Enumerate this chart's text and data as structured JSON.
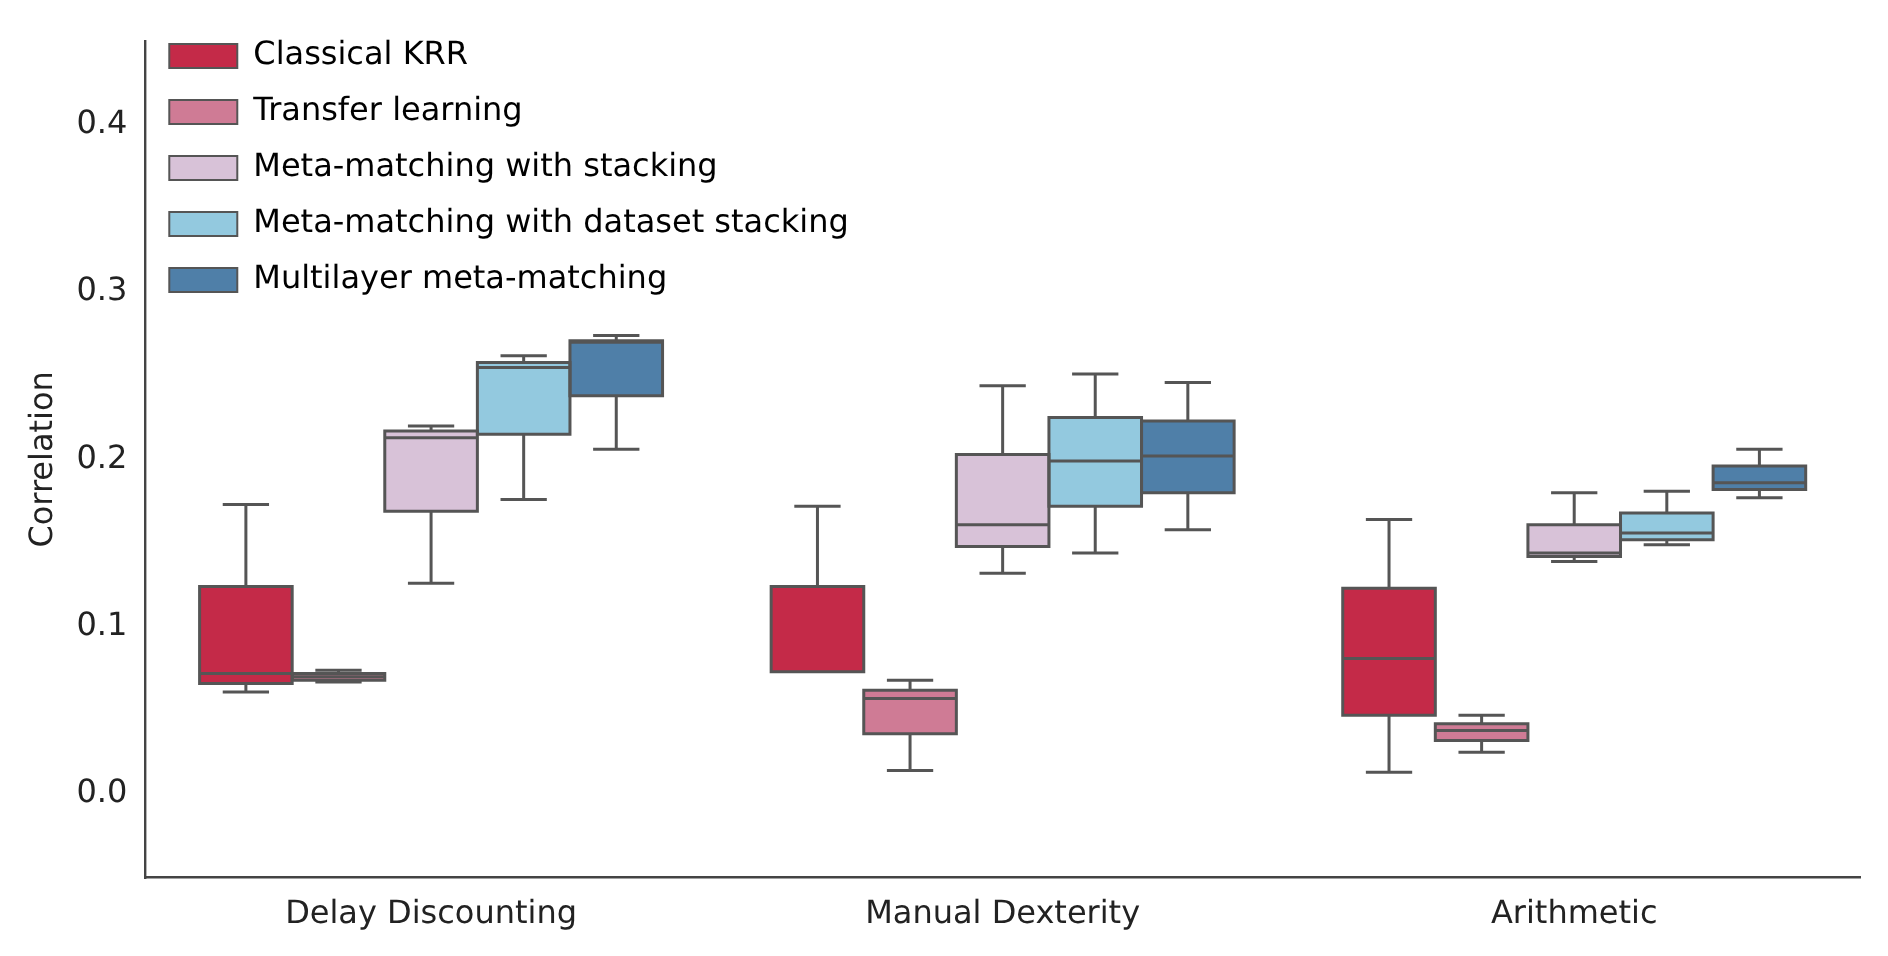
{
  "chart_data": {
    "type": "box",
    "ylabel": "Correlation",
    "categories": [
      "Delay Discounting",
      "Manual Dexterity",
      "Arithmetic"
    ],
    "ylim": [
      -0.05,
      0.45
    ],
    "yticks": [
      {
        "value": 0,
        "label": "0.0"
      },
      0.1,
      0.2,
      0.3,
      0.4
    ],
    "grid": false,
    "legend": "top left",
    "series": [
      {
        "name": "Classical KRR",
        "color": "#c42a48",
        "boxes": [
          {
            "low": 0.061,
            "q1": 0.066,
            "median": 0.072,
            "q3": 0.124,
            "high": 0.173
          },
          {
            "low": 0.073,
            "q1": 0.073,
            "median": 0.073,
            "q3": 0.124,
            "high": 0.172
          },
          {
            "low": 0.013,
            "q1": 0.047,
            "median": 0.081,
            "q3": 0.123,
            "high": 0.164
          }
        ]
      },
      {
        "name": "Transfer learning",
        "color": "#cf7b95",
        "boxes": [
          {
            "low": 0.067,
            "q1": 0.068,
            "median": 0.07,
            "q3": 0.072,
            "high": 0.074
          },
          {
            "low": 0.014,
            "q1": 0.036,
            "median": 0.057,
            "q3": 0.062,
            "high": 0.068
          },
          {
            "low": 0.025,
            "q1": 0.032,
            "median": 0.038,
            "q3": 0.042,
            "high": 0.047
          }
        ]
      },
      {
        "name": "Meta-matching with stacking",
        "color": "#d8c2d8",
        "boxes": [
          {
            "low": 0.126,
            "q1": 0.169,
            "median": 0.213,
            "q3": 0.217,
            "high": 0.22
          },
          {
            "low": 0.132,
            "q1": 0.148,
            "median": 0.161,
            "q3": 0.203,
            "high": 0.244
          },
          {
            "low": 0.139,
            "q1": 0.142,
            "median": 0.144,
            "q3": 0.161,
            "high": 0.18
          }
        ]
      },
      {
        "name": "Meta-matching with dataset stacking",
        "color": "#93c9df",
        "boxes": [
          {
            "low": 0.176,
            "q1": 0.215,
            "median": 0.255,
            "q3": 0.258,
            "high": 0.262
          },
          {
            "low": 0.144,
            "q1": 0.172,
            "median": 0.199,
            "q3": 0.225,
            "high": 0.251
          },
          {
            "low": 0.149,
            "q1": 0.152,
            "median": 0.156,
            "q3": 0.168,
            "high": 0.181
          }
        ]
      },
      {
        "name": "Multilayer meta-matching",
        "color": "#4f7fa8",
        "boxes": [
          {
            "low": 0.206,
            "q1": 0.238,
            "median": 0.27,
            "q3": 0.271,
            "high": 0.274
          },
          {
            "low": 0.158,
            "q1": 0.18,
            "median": 0.202,
            "q3": 0.223,
            "high": 0.246
          },
          {
            "low": 0.177,
            "q1": 0.182,
            "median": 0.186,
            "q3": 0.196,
            "high": 0.206
          }
        ]
      }
    ]
  }
}
